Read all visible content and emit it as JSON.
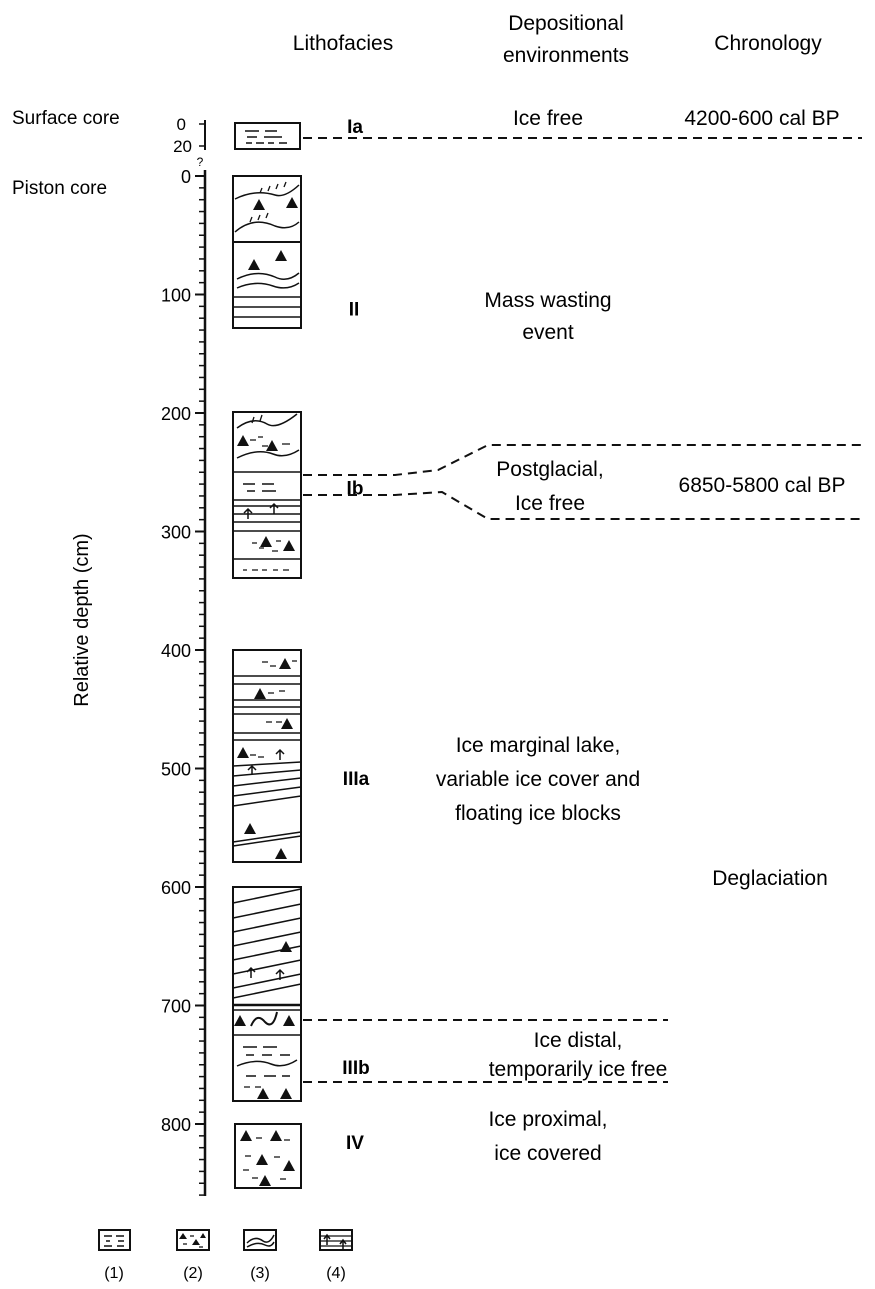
{
  "headers": {
    "lithofacies": "Lithofacies",
    "depositional_line1": "Depositional",
    "depositional_line2": "environments",
    "chronology": "Chronology"
  },
  "core_labels": {
    "surface": "Surface core",
    "piston": "Piston core"
  },
  "surface_axis": {
    "ticks": [
      "0",
      "20"
    ],
    "question_mark": "?"
  },
  "axis": {
    "title": "Relative depth (cm)",
    "tick_labels": [
      "0",
      "100",
      "200",
      "300",
      "400",
      "500",
      "600",
      "700",
      "800"
    ],
    "min": 0,
    "max": 860
  },
  "units": [
    {
      "id": "Ia",
      "label": "Ia",
      "top_depth": 0,
      "bottom_depth": 20,
      "core": "surface"
    },
    {
      "id": "II",
      "label": "II",
      "top_depth": 0,
      "bottom_depth": 130
    },
    {
      "id": "Ib",
      "label": "Ib",
      "top_depth": 200,
      "bottom_depth": 340
    },
    {
      "id": "IIIa",
      "label": "IIIa",
      "top_depth": 400,
      "bottom_depth": 580
    },
    {
      "id": "IIIb",
      "label": "IIIb",
      "top_depth": 600,
      "bottom_depth": 785
    },
    {
      "id": "IV",
      "label": "IV",
      "top_depth": 800,
      "bottom_depth": 850
    }
  ],
  "environments": {
    "ice_free": [
      "Ice free"
    ],
    "mass_wasting": [
      "Mass wasting",
      "event"
    ],
    "postglacial": [
      "Postglacial,",
      "Ice free"
    ],
    "ice_marginal": [
      "Ice marginal lake,",
      "variable ice cover and",
      "floating ice blocks"
    ],
    "ice_distal": [
      "Ice distal,",
      "temporarily ice free"
    ],
    "ice_proximal": [
      "Ice proximal,",
      "ice covered"
    ]
  },
  "chronology": {
    "surface": "4200-600 cal BP",
    "postglacial": "6850-5800 cal BP",
    "deglaciation": "Deglaciation"
  },
  "legend": [
    {
      "label": "(1)",
      "icon": "laminated-mud-icon"
    },
    {
      "label": "(2)",
      "icon": "diamicton-icon"
    },
    {
      "label": "(3)",
      "icon": "deformed-layers-icon"
    },
    {
      "label": "(4)",
      "icon": "dropstone-laminae-icon"
    }
  ]
}
